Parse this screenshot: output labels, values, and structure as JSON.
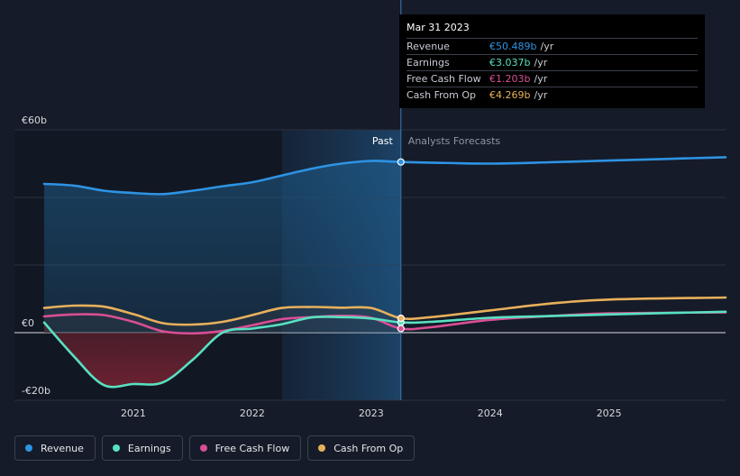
{
  "chart_data": {
    "type": "line",
    "x_ticks": [
      {
        "label": "2021",
        "t": 2021.0
      },
      {
        "label": "2022",
        "t": 2022.0
      },
      {
        "label": "2023",
        "t": 2023.0
      },
      {
        "label": "2024",
        "t": 2024.0
      },
      {
        "label": "2025",
        "t": 2025.0
      }
    ],
    "y_labels": [
      {
        "label": "€60b",
        "v": 60
      },
      {
        "label": "€0",
        "v": 0
      },
      {
        "label": "-€20b",
        "v": -20
      }
    ],
    "xlim": [
      2020.0,
      2025.98
    ],
    "ylim": [
      -20,
      60
    ],
    "past_marker": 2023.25,
    "past_label": "Past",
    "forecast_label": "Analysts Forecasts",
    "series": [
      {
        "name": "Revenue",
        "color": "#2e93e3",
        "points": [
          [
            2020.25,
            44
          ],
          [
            2020.5,
            43.5
          ],
          [
            2020.75,
            42
          ],
          [
            2021.0,
            41.3
          ],
          [
            2021.25,
            41
          ],
          [
            2021.5,
            42
          ],
          [
            2021.75,
            43.3
          ],
          [
            2022.0,
            44.5
          ],
          [
            2022.25,
            46.5
          ],
          [
            2022.5,
            48.5
          ],
          [
            2022.75,
            50
          ],
          [
            2023.0,
            50.8
          ],
          [
            2023.25,
            50.489
          ],
          [
            2023.5,
            50.3
          ],
          [
            2024.0,
            50
          ],
          [
            2024.5,
            50.4
          ],
          [
            2025.0,
            50.9
          ],
          [
            2025.98,
            51.9
          ]
        ]
      },
      {
        "name": "Earnings",
        "color": "#58e1c1",
        "points": [
          [
            2020.25,
            3
          ],
          [
            2020.5,
            -7
          ],
          [
            2020.75,
            -15.5
          ],
          [
            2021.0,
            -15.2
          ],
          [
            2021.25,
            -14.7
          ],
          [
            2021.5,
            -8
          ],
          [
            2021.75,
            0
          ],
          [
            2022.0,
            1.2
          ],
          [
            2022.25,
            2.5
          ],
          [
            2022.5,
            4.5
          ],
          [
            2022.75,
            4.6
          ],
          [
            2023.0,
            4.2
          ],
          [
            2023.25,
            3.037
          ],
          [
            2023.5,
            3.2
          ],
          [
            2024.0,
            4.4
          ],
          [
            2024.5,
            4.9
          ],
          [
            2025.0,
            5.4
          ],
          [
            2025.98,
            6.2
          ]
        ]
      },
      {
        "name": "Free Cash Flow",
        "color": "#d94e94",
        "points": [
          [
            2020.25,
            4.8
          ],
          [
            2020.5,
            5.4
          ],
          [
            2020.75,
            5.2
          ],
          [
            2021.0,
            3.2
          ],
          [
            2021.25,
            0.4
          ],
          [
            2021.5,
            -0.2
          ],
          [
            2021.75,
            0.5
          ],
          [
            2022.0,
            2.2
          ],
          [
            2022.25,
            4
          ],
          [
            2022.5,
            4.6
          ],
          [
            2022.75,
            5
          ],
          [
            2023.0,
            4.4
          ],
          [
            2023.25,
            1.203
          ],
          [
            2023.5,
            1.6
          ],
          [
            2024.0,
            3.8
          ],
          [
            2024.5,
            4.9
          ],
          [
            2025.0,
            5.7
          ],
          [
            2025.98,
            6
          ]
        ]
      },
      {
        "name": "Cash From Op",
        "color": "#e8b05c",
        "points": [
          [
            2020.25,
            7.3
          ],
          [
            2020.5,
            8
          ],
          [
            2020.75,
            7.7
          ],
          [
            2021.0,
            5.5
          ],
          [
            2021.25,
            2.8
          ],
          [
            2021.5,
            2.4
          ],
          [
            2021.75,
            3.2
          ],
          [
            2022.0,
            5.2
          ],
          [
            2022.25,
            7.3
          ],
          [
            2022.5,
            7.6
          ],
          [
            2022.75,
            7.4
          ],
          [
            2023.0,
            7.3
          ],
          [
            2023.25,
            4.269
          ],
          [
            2023.5,
            4.6
          ],
          [
            2024.0,
            6.6
          ],
          [
            2024.5,
            8.6
          ],
          [
            2025.0,
            9.8
          ],
          [
            2025.98,
            10.4
          ]
        ]
      }
    ],
    "tooltip": {
      "date": "Mar 31 2023",
      "rows": [
        {
          "label": "Revenue",
          "value": "€50.489b",
          "unit": "/yr",
          "color": "#2e93e3"
        },
        {
          "label": "Earnings",
          "value": "€3.037b",
          "unit": "/yr",
          "color": "#58e1c1"
        },
        {
          "label": "Free Cash Flow",
          "value": "€1.203b",
          "unit": "/yr",
          "color": "#d94e94"
        },
        {
          "label": "Cash From Op",
          "value": "€4.269b",
          "unit": "/yr",
          "color": "#e8b05c"
        }
      ]
    },
    "legend": [
      {
        "label": "Revenue",
        "color": "#2e93e3"
      },
      {
        "label": "Earnings",
        "color": "#58e1c1"
      },
      {
        "label": "Free Cash Flow",
        "color": "#d94e94"
      },
      {
        "label": "Cash From Op",
        "color": "#e8b05c"
      }
    ]
  }
}
